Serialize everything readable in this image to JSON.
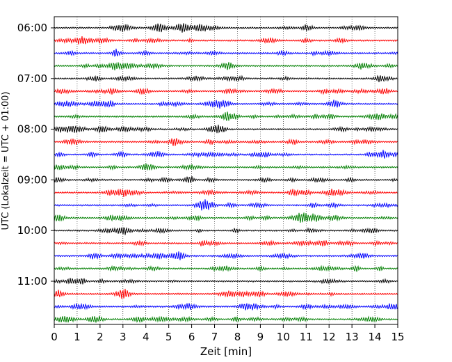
{
  "chart_data": {
    "type": "line",
    "title": "",
    "xlabel": "Zeit  [min]",
    "ylabel": "UTC (Lokalzeit = UTC + 01:00)",
    "xlim": [
      0,
      15
    ],
    "xticks": [
      "0",
      "1",
      "2",
      "3",
      "4",
      "5",
      "6",
      "7",
      "8",
      "9",
      "10",
      "11",
      "12",
      "13",
      "14",
      "15"
    ],
    "yticks": [
      "06:00",
      "07:00",
      "08:00",
      "09:00",
      "10:00",
      "11:00"
    ],
    "grid": "vertical dotted",
    "trace_colors": [
      "#000000",
      "#ff0000",
      "#0000ff",
      "#007f00"
    ],
    "trace_start_times": [
      "06:00",
      "06:15",
      "06:30",
      "06:45",
      "07:00",
      "07:15",
      "07:30",
      "07:45",
      "08:00",
      "08:15",
      "08:30",
      "08:45",
      "09:00",
      "09:15",
      "09:30",
      "09:45",
      "10:00",
      "10:15",
      "10:30",
      "10:45",
      "11:00",
      "11:15",
      "11:30",
      "11:45"
    ]
  }
}
